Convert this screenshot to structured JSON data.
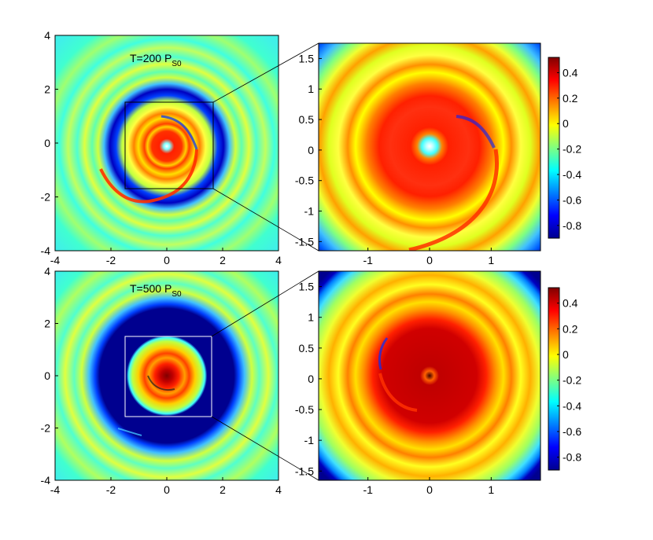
{
  "colorscale": [
    "#00008f",
    "#0000ff",
    "#0080ff",
    "#00ffff",
    "#80ff80",
    "#ffff00",
    "#ff8000",
    "#ff0000",
    "#800000"
  ],
  "chart_data": [
    {
      "type": "heatmap",
      "title": "T=200 P",
      "title_subscript": "S0",
      "xlim": [
        -4,
        4
      ],
      "ylim": [
        -4,
        4
      ],
      "xticks": [
        -4,
        -2,
        0,
        2,
        4
      ],
      "yticks": [
        -4,
        -2,
        0,
        2,
        4
      ],
      "zoom_box": [
        -1.5,
        1.5,
        -1.5,
        1.5
      ]
    },
    {
      "type": "heatmap",
      "title": "",
      "xlim": [
        -1.8,
        1.8
      ],
      "ylim": [
        -1.65,
        1.75
      ],
      "xticks": [
        -1,
        0,
        1
      ],
      "yticks": [
        -1.5,
        -1,
        -0.5,
        0,
        0.5,
        1,
        1.5
      ],
      "colorbar": {
        "min": -0.9,
        "max": 0.52,
        "ticks": [
          -0.8,
          -0.6,
          -0.4,
          -0.2,
          0,
          0.2,
          0.4
        ]
      }
    },
    {
      "type": "heatmap",
      "title": "T=500 P",
      "title_subscript": "S0",
      "xlim": [
        -4,
        4
      ],
      "ylim": [
        -4,
        4
      ],
      "xticks": [
        -4,
        -2,
        0,
        2,
        4
      ],
      "yticks": [
        -4,
        -2,
        0,
        2,
        4
      ],
      "zoom_box": [
        -1.5,
        1.5,
        -1.5,
        1.5
      ]
    },
    {
      "type": "heatmap",
      "title": "",
      "xlim": [
        -1.8,
        1.8
      ],
      "ylim": [
        -1.65,
        1.75
      ],
      "xticks": [
        -1,
        0,
        1
      ],
      "yticks": [
        -1.5,
        -1,
        -0.5,
        0,
        0.5,
        1,
        1.5
      ],
      "colorbar": {
        "min": -0.9,
        "max": 0.52,
        "ticks": [
          -0.8,
          -0.6,
          -0.4,
          -0.2,
          0,
          0.2,
          0.4
        ]
      }
    }
  ]
}
